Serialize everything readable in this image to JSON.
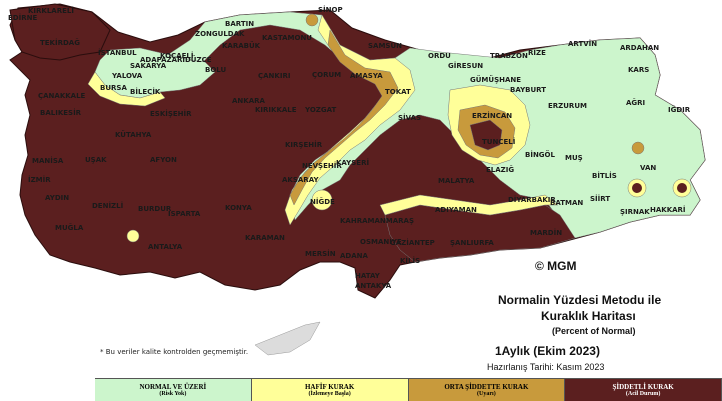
{
  "map": {
    "title_line1": "Normalin Yüzdesi Metodu ile",
    "title_line2": "Kuraklık Haritası",
    "title_sub": "(Percent of Normal)",
    "period": "1Aylık (Ekim 2023)",
    "prepared": "Hazırlanış Tarihi: Kasım 2023",
    "note": "* Bu veriler kalite kontrolden geçmemiştir.",
    "copyright": "© MGM",
    "colors": {
      "normal": "#ccf5cc",
      "mild": "#ffff99",
      "moderate": "#c89a3c",
      "severe": "#5b1f1f",
      "sea": "#ffffff"
    }
  },
  "legend": [
    {
      "label": "NORMAL VE ÜZERİ",
      "sub": "(Risk Yok)",
      "color": "#ccf5cc",
      "text_color": "#222222"
    },
    {
      "label": "HAFİF KURAK",
      "sub": "(İzlemeye Başla)",
      "color": "#ffff99",
      "text_color": "#222222"
    },
    {
      "label": "ORTA ŞİDDETTE KURAK",
      "sub": "(Uyarı)",
      "color": "#c89a3c",
      "text_color": "#222222"
    },
    {
      "label": "ŞİDDETLİ KURAK",
      "sub": "(Acil Durum)",
      "color": "#5b1f1f",
      "text_color": "#ffffff"
    }
  ],
  "cities": [
    "KIRKLARELİ",
    "EDİRNE",
    "TEKİRDAĞ",
    "İSTANBUL",
    "ÇANAKKALE",
    "BALIKESİR",
    "BURSA",
    "YALOVA",
    "BİLECİK",
    "SAKARYA",
    "ADAPAZARI",
    "DÜZCE",
    "BOLU",
    "KOCAELİ",
    "ZONGULDAK",
    "BARTIN",
    "KARABÜK",
    "KASTAMONU",
    "SİNOP",
    "SAMSUN",
    "ORDU",
    "GİRESUN",
    "TRABZON",
    "RİZE",
    "ARTVİN",
    "ARDAHAN",
    "KARS",
    "IĞDIR",
    "AĞRI",
    "ERZURUM",
    "BAYBURT",
    "GÜMÜŞHANE",
    "AMASYA",
    "TOKAT",
    "ÇORUM",
    "ÇANKIRI",
    "ANKARA",
    "KIRIKKALE",
    "YOZGAT",
    "SİVAS",
    "ERZİNCAN",
    "TUNCELİ",
    "BİNGÖL",
    "MUŞ",
    "VAN",
    "BİTLİS",
    "SİİRT",
    "ŞIRNAK",
    "HAKKARİ",
    "BATMAN",
    "MARDİN",
    "DİYARBAKIR",
    "ŞANLIURFA",
    "ADIYAMAN",
    "MALATYA",
    "ELAZIĞ",
    "KAHRAMANMARAŞ",
    "GAZİANTEP",
    "KİLİS",
    "OSMANİYE",
    "ADANA",
    "MERSİN",
    "HATAY",
    "ANTAKYA",
    "NİĞDE",
    "NEVŞEHİR",
    "KAYSERİ",
    "KIRŞEHİR",
    "AKSARAY",
    "KONYA",
    "KARAMAN",
    "ANTALYA",
    "ISPARTA",
    "BURDUR",
    "DENİZLİ",
    "MUĞLA",
    "AYDIN",
    "İZMİR",
    "MANİSA",
    "UŞAK",
    "KÜTAHYA",
    "AFYON",
    "ESKİŞEHİR"
  ]
}
